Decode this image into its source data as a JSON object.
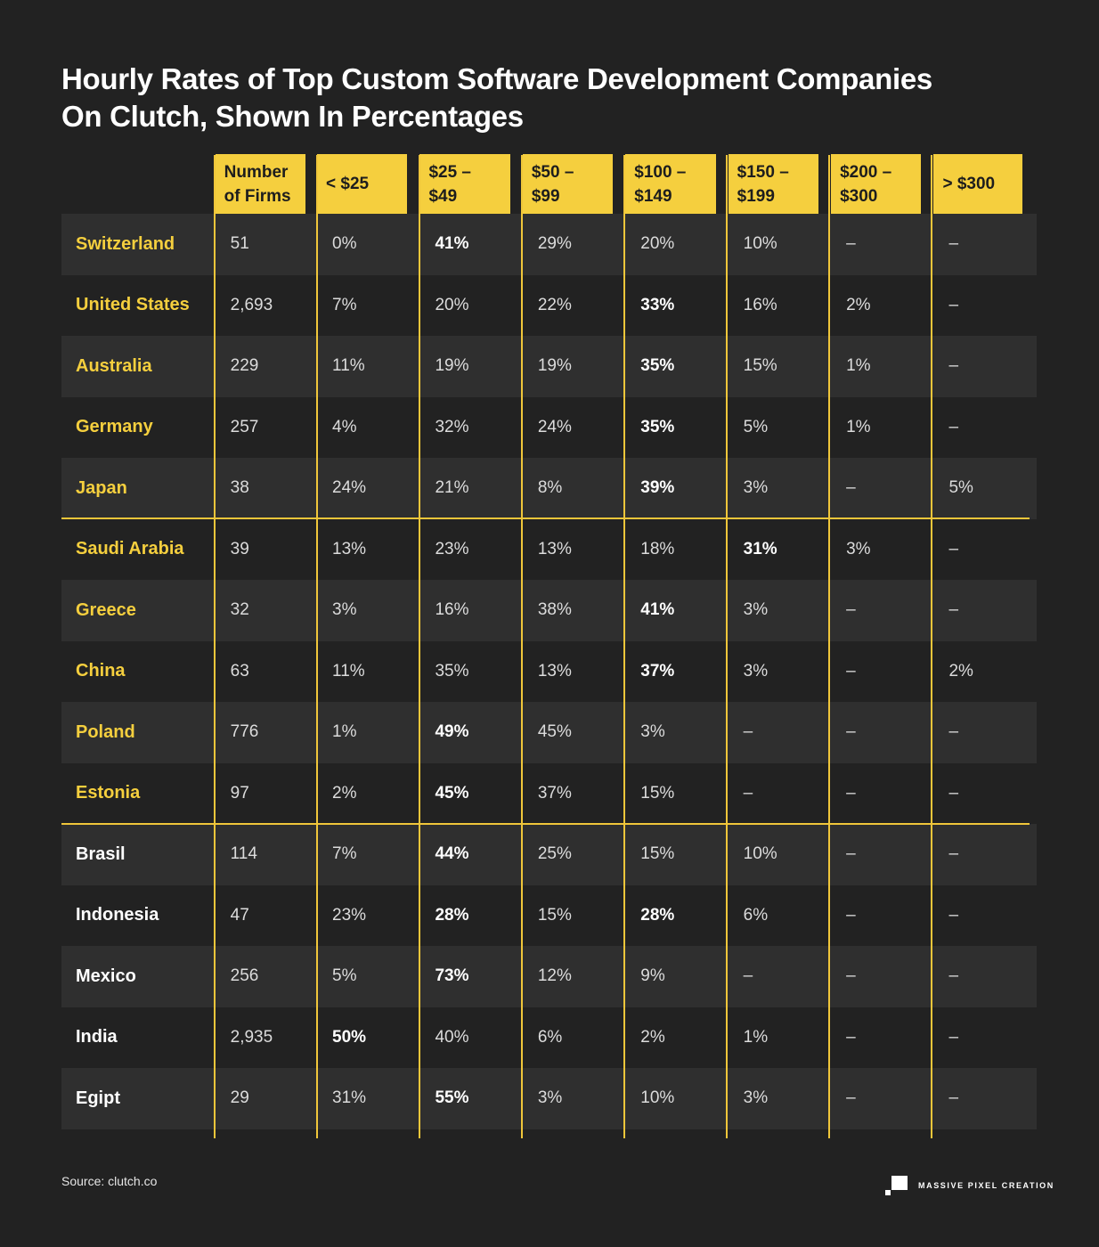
{
  "title_lines": [
    "Hourly Rates of Top Custom Software Development Companies",
    "On Clutch, Shown In Percentages"
  ],
  "colors": {
    "accent": "#f5cf3e",
    "background": "#222222",
    "row_alt": "#2f2f2f"
  },
  "chart_data": {
    "type": "table",
    "title": "Hourly Rates of Top Custom Software Development Companies On Clutch, Shown In Percentages",
    "columns": [
      "Number of Firms",
      "< $25",
      "$25 – $49",
      "$50 – $99",
      "$100 – $149",
      "$150 – $199",
      "$200 – $300",
      "> $300"
    ],
    "column_display": [
      [
        "Number",
        "of Firms"
      ],
      [
        "< $25"
      ],
      [
        "$25 –",
        "$49"
      ],
      [
        "$50 –",
        "$99"
      ],
      [
        "$100 –",
        "$149"
      ],
      [
        "$150 –",
        "$199"
      ],
      [
        "$200 –",
        "$300"
      ],
      [
        "> $300"
      ]
    ],
    "rows": [
      {
        "country": "Switzerland",
        "group": 1,
        "cells": [
          "51",
          "0%",
          "41%",
          "29%",
          "20%",
          "10%",
          "–",
          "–"
        ],
        "bold": [
          2
        ]
      },
      {
        "country": "United States",
        "group": 1,
        "cells": [
          "2,693",
          "7%",
          "20%",
          "22%",
          "33%",
          "16%",
          "2%",
          "–"
        ],
        "bold": [
          4
        ]
      },
      {
        "country": "Australia",
        "group": 1,
        "cells": [
          "229",
          "11%",
          "19%",
          "19%",
          "35%",
          "15%",
          "1%",
          "–"
        ],
        "bold": [
          4
        ]
      },
      {
        "country": "Germany",
        "group": 1,
        "cells": [
          "257",
          "4%",
          "32%",
          "24%",
          "35%",
          "5%",
          "1%",
          "–"
        ],
        "bold": [
          4
        ]
      },
      {
        "country": "Japan",
        "group": 1,
        "cells": [
          "38",
          "24%",
          "21%",
          "8%",
          "39%",
          "3%",
          "–",
          "5%"
        ],
        "bold": [
          4
        ]
      },
      {
        "country": "Saudi Arabia",
        "group": 2,
        "cells": [
          "39",
          "13%",
          "23%",
          "13%",
          "18%",
          "31%",
          "3%",
          "–"
        ],
        "bold": [
          5
        ]
      },
      {
        "country": "Greece",
        "group": 2,
        "cells": [
          "32",
          "3%",
          "16%",
          "38%",
          "41%",
          "3%",
          "–",
          "–"
        ],
        "bold": [
          4
        ]
      },
      {
        "country": "China",
        "group": 2,
        "cells": [
          "63",
          "11%",
          "35%",
          "13%",
          "37%",
          "3%",
          "–",
          "2%"
        ],
        "bold": [
          4
        ]
      },
      {
        "country": "Poland",
        "group": 2,
        "cells": [
          "776",
          "1%",
          "49%",
          "45%",
          "3%",
          "–",
          "–",
          "–"
        ],
        "bold": [
          2
        ]
      },
      {
        "country": "Estonia",
        "group": 2,
        "cells": [
          "97",
          "2%",
          "45%",
          "37%",
          "15%",
          "–",
          "–",
          "–"
        ],
        "bold": [
          2
        ]
      },
      {
        "country": "Brasil",
        "group": 3,
        "cells": [
          "114",
          "7%",
          "44%",
          "25%",
          "15%",
          "10%",
          "–",
          "–"
        ],
        "bold": [
          2
        ]
      },
      {
        "country": "Indonesia",
        "group": 3,
        "cells": [
          "47",
          "23%",
          "28%",
          "15%",
          "28%",
          "6%",
          "–",
          "–"
        ],
        "bold": [
          2,
          4
        ]
      },
      {
        "country": "Mexico",
        "group": 3,
        "cells": [
          "256",
          "5%",
          "73%",
          "12%",
          "9%",
          "–",
          "–",
          "–"
        ],
        "bold": [
          2
        ]
      },
      {
        "country": "India",
        "group": 3,
        "cells": [
          "2,935",
          "50%",
          "40%",
          "6%",
          "2%",
          "1%",
          "–",
          "–"
        ],
        "bold": [
          1
        ]
      },
      {
        "country": "Egipt",
        "group": 3,
        "cells": [
          "29",
          "31%",
          "55%",
          "3%",
          "10%",
          "3%",
          "–",
          "–"
        ],
        "bold": [
          2
        ]
      }
    ]
  },
  "footer": {
    "source": "Source: clutch.co",
    "brand": "MASSIVE PIXEL CREATION"
  }
}
